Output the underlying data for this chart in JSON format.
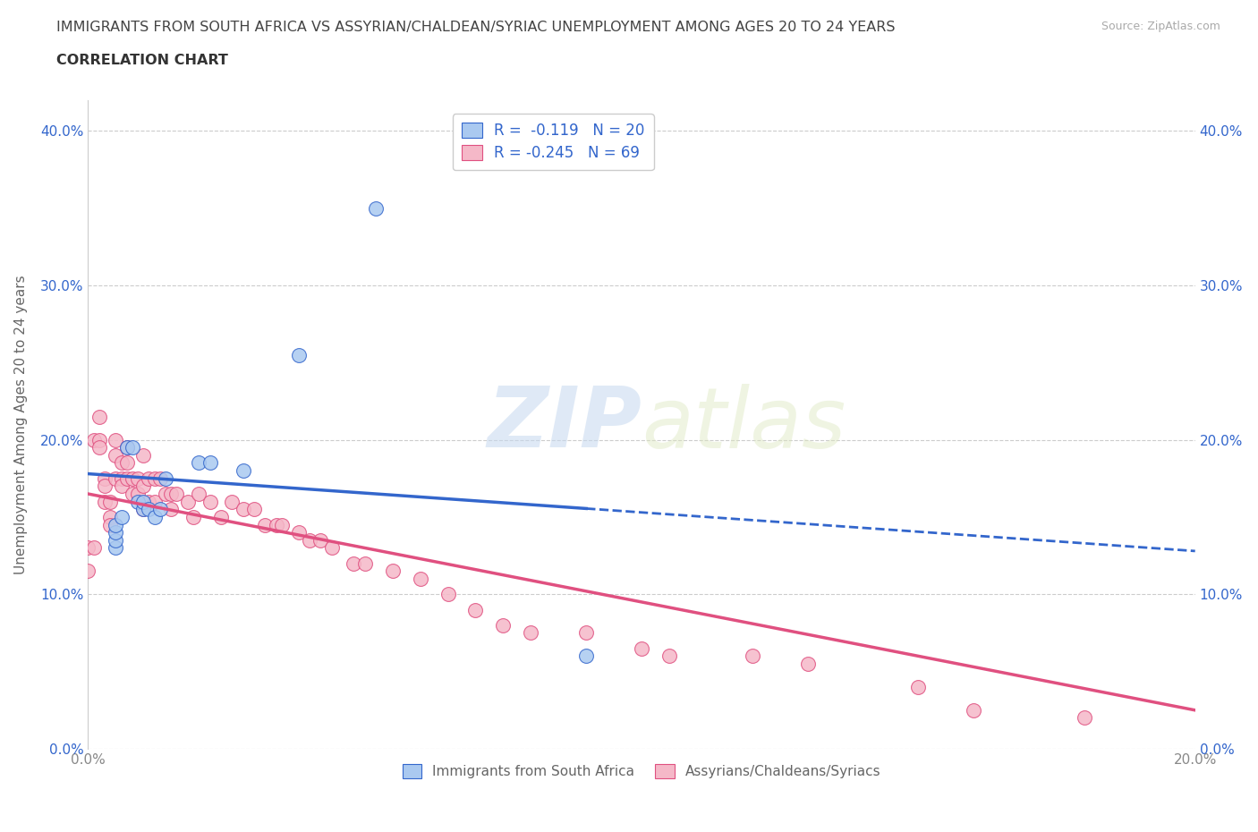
{
  "title_line1": "IMMIGRANTS FROM SOUTH AFRICA VS ASSYRIAN/CHALDEAN/SYRIAC UNEMPLOYMENT AMONG AGES 20 TO 24 YEARS",
  "title_line2": "CORRELATION CHART",
  "source_text": "Source: ZipAtlas.com",
  "ylabel": "Unemployment Among Ages 20 to 24 years",
  "xmin": 0.0,
  "xmax": 0.2,
  "ymin": 0.0,
  "ymax": 0.42,
  "yticks": [
    0.0,
    0.1,
    0.2,
    0.3,
    0.4
  ],
  "ytick_labels": [
    "0.0%",
    "10.0%",
    "20.0%",
    "30.0%",
    "40.0%"
  ],
  "xticks": [
    0.0,
    0.05,
    0.1,
    0.15,
    0.2
  ],
  "xtick_labels": [
    "0.0%",
    "",
    "",
    "",
    "20.0%"
  ],
  "blue_R": -0.119,
  "blue_N": 20,
  "pink_R": -0.245,
  "pink_N": 69,
  "blue_color": "#aac9f0",
  "pink_color": "#f5b8c8",
  "blue_line_color": "#3366cc",
  "pink_line_color": "#e05080",
  "watermark_zip": "ZIP",
  "watermark_atlas": "atlas",
  "legend_label_blue": "Immigrants from South Africa",
  "legend_label_pink": "Assyrians/Chaldeans/Syriacs",
  "blue_scatter_x": [
    0.005,
    0.005,
    0.005,
    0.005,
    0.006,
    0.007,
    0.008,
    0.009,
    0.01,
    0.01,
    0.011,
    0.012,
    0.013,
    0.014,
    0.02,
    0.022,
    0.028,
    0.038,
    0.052,
    0.09
  ],
  "blue_scatter_y": [
    0.13,
    0.135,
    0.14,
    0.145,
    0.15,
    0.195,
    0.195,
    0.16,
    0.155,
    0.16,
    0.155,
    0.15,
    0.155,
    0.175,
    0.185,
    0.185,
    0.18,
    0.255,
    0.35,
    0.06
  ],
  "pink_scatter_x": [
    0.0,
    0.0,
    0.001,
    0.001,
    0.002,
    0.002,
    0.002,
    0.003,
    0.003,
    0.003,
    0.004,
    0.004,
    0.004,
    0.005,
    0.005,
    0.005,
    0.006,
    0.006,
    0.006,
    0.007,
    0.007,
    0.007,
    0.008,
    0.008,
    0.009,
    0.009,
    0.01,
    0.01,
    0.01,
    0.011,
    0.011,
    0.012,
    0.012,
    0.013,
    0.014,
    0.015,
    0.015,
    0.016,
    0.018,
    0.019,
    0.02,
    0.022,
    0.024,
    0.026,
    0.028,
    0.03,
    0.032,
    0.034,
    0.035,
    0.038,
    0.04,
    0.042,
    0.044,
    0.048,
    0.05,
    0.055,
    0.06,
    0.065,
    0.07,
    0.075,
    0.08,
    0.09,
    0.1,
    0.105,
    0.12,
    0.13,
    0.15,
    0.16,
    0.18
  ],
  "pink_scatter_y": [
    0.13,
    0.115,
    0.2,
    0.13,
    0.215,
    0.2,
    0.195,
    0.175,
    0.17,
    0.16,
    0.16,
    0.15,
    0.145,
    0.2,
    0.19,
    0.175,
    0.185,
    0.175,
    0.17,
    0.195,
    0.185,
    0.175,
    0.175,
    0.165,
    0.175,
    0.165,
    0.19,
    0.17,
    0.155,
    0.175,
    0.16,
    0.175,
    0.16,
    0.175,
    0.165,
    0.165,
    0.155,
    0.165,
    0.16,
    0.15,
    0.165,
    0.16,
    0.15,
    0.16,
    0.155,
    0.155,
    0.145,
    0.145,
    0.145,
    0.14,
    0.135,
    0.135,
    0.13,
    0.12,
    0.12,
    0.115,
    0.11,
    0.1,
    0.09,
    0.08,
    0.075,
    0.075,
    0.065,
    0.06,
    0.06,
    0.055,
    0.04,
    0.025,
    0.02
  ]
}
